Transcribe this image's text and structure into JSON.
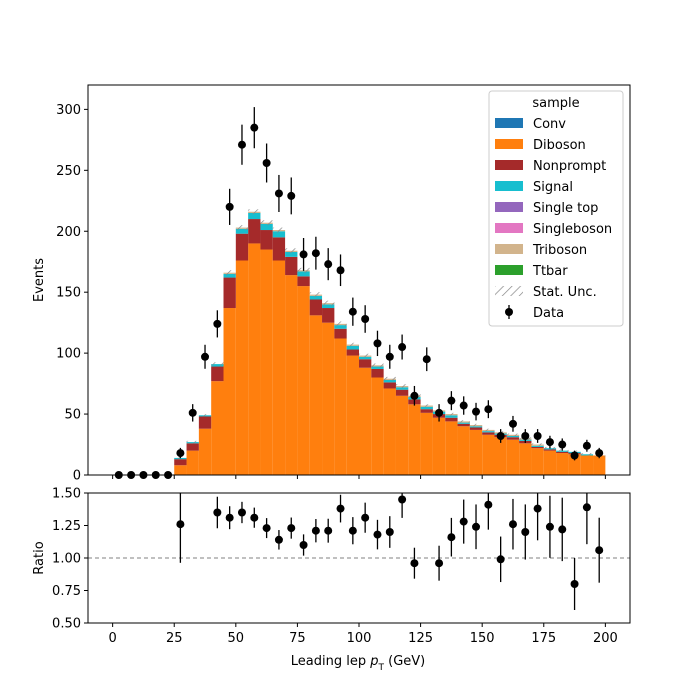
{
  "chart_data": {
    "type": "stacked-histogram-with-ratio",
    "title": "",
    "xlabel": "Leading lep p_T (GeV)",
    "xlabel_parts": {
      "main": "Leading lep ",
      "p": "p",
      "sub": "T",
      "unit": " (GeV)"
    },
    "xlim": [
      -10,
      210
    ],
    "xticks": [
      0,
      25,
      50,
      75,
      100,
      125,
      150,
      175,
      200
    ],
    "bin_edges": [
      0,
      5,
      10,
      15,
      20,
      25,
      30,
      35,
      40,
      45,
      50,
      55,
      60,
      65,
      70,
      75,
      80,
      85,
      90,
      95,
      100,
      105,
      110,
      115,
      120,
      125,
      130,
      135,
      140,
      145,
      150,
      155,
      160,
      165,
      170,
      175,
      180,
      185,
      190,
      195,
      200
    ],
    "main": {
      "ylabel": "Events",
      "ylim": [
        0,
        320
      ],
      "yticks": [
        0,
        50,
        100,
        150,
        200,
        250,
        300
      ],
      "stack_series": [
        {
          "name": "Conv",
          "color": "#1f77b4",
          "values": [
            0,
            0,
            0,
            0,
            0,
            0,
            0,
            0,
            0,
            0,
            0,
            0,
            0,
            0,
            0,
            0,
            0,
            0,
            0,
            0,
            0,
            0,
            0,
            0,
            0,
            0,
            0,
            0,
            0,
            0,
            0,
            0,
            0,
            0,
            0,
            0,
            0,
            0,
            0,
            0
          ]
        },
        {
          "name": "Diboson",
          "color": "#ff7f0e",
          "values": [
            0,
            0,
            0,
            0,
            0,
            8,
            20,
            38,
            77,
            137,
            176,
            190,
            185,
            176,
            164,
            155,
            131,
            125,
            112,
            98,
            88,
            80,
            71,
            65,
            58,
            51,
            47,
            44,
            40,
            37,
            33,
            31,
            29,
            26,
            22,
            20,
            18,
            17,
            16,
            16
          ]
        },
        {
          "name": "Nonprompt",
          "color": "#a52a2a",
          "values": [
            0,
            0,
            0,
            0,
            0,
            5,
            6,
            10,
            12,
            25,
            22,
            20,
            16,
            19,
            15,
            8,
            13,
            12,
            8,
            5,
            7,
            7,
            5,
            5,
            4,
            3,
            3,
            3,
            2,
            2,
            2,
            2,
            2,
            2,
            1,
            1,
            1,
            1,
            0,
            0
          ]
        },
        {
          "name": "Signal",
          "color": "#17becf",
          "values": [
            0,
            0,
            0,
            0,
            0,
            1,
            1,
            1,
            2,
            3,
            4,
            5,
            5,
            5,
            4,
            4,
            3,
            3,
            3,
            3,
            2,
            2,
            2,
            2,
            2,
            2,
            2,
            2,
            1,
            1,
            1,
            1,
            1,
            1,
            1,
            1,
            1,
            1,
            1,
            0
          ]
        },
        {
          "name": "Single top",
          "color": "#9467bd",
          "values": [
            0,
            0,
            0,
            0,
            0,
            0,
            0,
            0,
            0,
            0,
            0,
            0,
            0,
            0,
            0,
            0,
            0,
            0,
            0,
            0,
            0,
            0,
            0,
            0,
            0,
            0,
            0,
            0,
            0,
            0,
            0,
            0,
            0,
            0,
            0,
            0,
            0,
            0,
            0,
            0
          ]
        },
        {
          "name": "Singleboson",
          "color": "#e377c2",
          "values": [
            0,
            0,
            0,
            0,
            0,
            0,
            0,
            0,
            0,
            0,
            0,
            0,
            0,
            0,
            0,
            0,
            0,
            0,
            0,
            0,
            0,
            0,
            0,
            0,
            0,
            0,
            0,
            0,
            0,
            0,
            0,
            0,
            0,
            0,
            0,
            0,
            0,
            0,
            0,
            0
          ]
        },
        {
          "name": "Triboson",
          "color": "#d2b48c",
          "values": [
            0,
            0,
            0,
            0,
            0,
            0,
            0,
            0,
            0,
            1,
            1,
            1,
            1,
            1,
            1,
            1,
            1,
            1,
            1,
            1,
            1,
            1,
            1,
            1,
            1,
            1,
            1,
            1,
            1,
            1,
            1,
            1,
            1,
            1,
            1,
            0,
            0,
            0,
            0,
            0
          ]
        },
        {
          "name": "Ttbar",
          "color": "#2ca02c",
          "values": [
            0,
            0,
            0,
            0,
            0,
            0,
            0,
            0,
            0,
            0,
            0,
            0,
            0,
            0,
            0,
            0,
            0,
            0,
            0,
            0,
            0,
            0,
            0,
            0,
            0,
            0,
            0,
            0,
            0,
            0,
            0,
            0,
            0,
            0,
            0,
            0,
            0,
            0,
            0,
            0
          ]
        }
      ],
      "stat_unc": [
        0,
        0,
        0,
        0,
        0,
        1,
        1,
        1,
        1.5,
        2,
        2,
        2,
        2,
        2,
        2,
        2,
        2,
        2,
        2,
        1.5,
        1.5,
        1.5,
        1.5,
        1.5,
        1.5,
        1,
        1,
        1,
        1,
        1,
        1,
        1,
        1,
        1,
        1,
        1,
        1,
        1,
        1,
        1
      ],
      "data_points": {
        "name": "Data",
        "x": [
          2.5,
          7.5,
          12.5,
          17.5,
          22.5,
          27.5,
          32.5,
          37.5,
          42.5,
          47.5,
          52.5,
          57.5,
          62.5,
          67.5,
          72.5,
          77.5,
          82.5,
          87.5,
          92.5,
          97.5,
          102.5,
          107.5,
          112.5,
          117.5,
          122.5,
          127.5,
          132.5,
          137.5,
          142.5,
          147.5,
          152.5,
          157.5,
          162.5,
          167.5,
          172.5,
          177.5,
          182.5,
          187.5,
          192.5,
          197.5
        ],
        "y": [
          0,
          0,
          0,
          0,
          0,
          18,
          51,
          97,
          124,
          220,
          271,
          285,
          256,
          231,
          229,
          181,
          182,
          173,
          168,
          134,
          128,
          108,
          97,
          105,
          65,
          95,
          51,
          61,
          57,
          52,
          54,
          32,
          42,
          32,
          32,
          27,
          25,
          16,
          24,
          18
        ]
      },
      "legend_title": "sample",
      "legend_position": "upper right",
      "legend_entries": [
        "Conv",
        "Diboson",
        "Nonprompt",
        "Signal",
        "Single top",
        "Singleboson",
        "Triboson",
        "Ttbar",
        "Stat. Unc.",
        "Data"
      ]
    },
    "ratio": {
      "ylabel": "Ratio",
      "ylim": [
        0.5,
        1.5
      ],
      "yticks": [
        0.5,
        0.75,
        1.0,
        1.25,
        1.5
      ],
      "ytick_labels": [
        "0.50",
        "0.75",
        "1.00",
        "1.25",
        "1.50"
      ],
      "reference_line": 1.0,
      "points": {
        "x": [
          27.5,
          42.5,
          47.5,
          52.5,
          57.5,
          62.5,
          67.5,
          72.5,
          77.5,
          82.5,
          87.5,
          92.5,
          97.5,
          102.5,
          107.5,
          112.5,
          117.5,
          122.5,
          132.5,
          137.5,
          142.5,
          147.5,
          152.5,
          157.5,
          162.5,
          167.5,
          172.5,
          177.5,
          182.5,
          187.5,
          192.5,
          197.5
        ],
        "y": [
          1.26,
          1.35,
          1.31,
          1.35,
          1.31,
          1.23,
          1.14,
          1.23,
          1.1,
          1.21,
          1.21,
          1.38,
          1.21,
          1.31,
          1.18,
          1.2,
          1.45,
          0.96,
          0.96,
          1.16,
          1.28,
          1.24,
          1.41,
          0.99,
          1.26,
          1.2,
          1.38,
          1.24,
          1.22,
          0.8,
          1.39,
          1.06
        ]
      }
    }
  }
}
